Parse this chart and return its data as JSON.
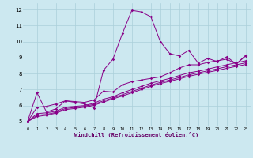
{
  "title": "",
  "xlabel": "Windchill (Refroidissement éolien,°C)",
  "bg_color": "#cce8f0",
  "grid_color": "#aacfda",
  "line_color": "#880088",
  "xlim": [
    -0.5,
    23.5
  ],
  "ylim": [
    4.7,
    12.4
  ],
  "xticks": [
    0,
    1,
    2,
    3,
    4,
    5,
    6,
    7,
    8,
    9,
    10,
    11,
    12,
    13,
    14,
    15,
    16,
    17,
    18,
    19,
    20,
    21,
    22,
    23
  ],
  "yticks": [
    5,
    6,
    7,
    8,
    9,
    10,
    11,
    12
  ],
  "series": [
    [
      5.0,
      6.8,
      5.6,
      5.8,
      6.3,
      6.2,
      6.1,
      5.85,
      8.2,
      8.9,
      10.5,
      11.95,
      11.85,
      11.55,
      10.0,
      9.25,
      9.1,
      9.45,
      8.65,
      8.95,
      8.75,
      9.05,
      8.6,
      9.15
    ],
    [
      5.0,
      5.9,
      5.95,
      6.1,
      6.3,
      6.25,
      6.2,
      6.35,
      6.9,
      6.85,
      7.3,
      7.5,
      7.6,
      7.7,
      7.8,
      8.05,
      8.35,
      8.55,
      8.55,
      8.7,
      8.8,
      8.9,
      8.6,
      9.1
    ],
    [
      5.0,
      5.5,
      5.55,
      5.65,
      5.9,
      5.95,
      6.0,
      6.15,
      6.4,
      6.55,
      6.8,
      7.0,
      7.2,
      7.4,
      7.55,
      7.7,
      7.88,
      8.05,
      8.15,
      8.28,
      8.42,
      8.55,
      8.68,
      8.8
    ],
    [
      5.0,
      5.4,
      5.45,
      5.58,
      5.82,
      5.88,
      5.95,
      6.08,
      6.3,
      6.48,
      6.68,
      6.88,
      7.08,
      7.28,
      7.45,
      7.6,
      7.75,
      7.92,
      8.05,
      8.17,
      8.3,
      8.43,
      8.55,
      8.67
    ],
    [
      5.0,
      5.32,
      5.4,
      5.53,
      5.75,
      5.82,
      5.9,
      6.02,
      6.22,
      6.42,
      6.6,
      6.8,
      7.0,
      7.2,
      7.38,
      7.52,
      7.67,
      7.83,
      7.96,
      8.08,
      8.2,
      8.33,
      8.45,
      8.57
    ]
  ]
}
